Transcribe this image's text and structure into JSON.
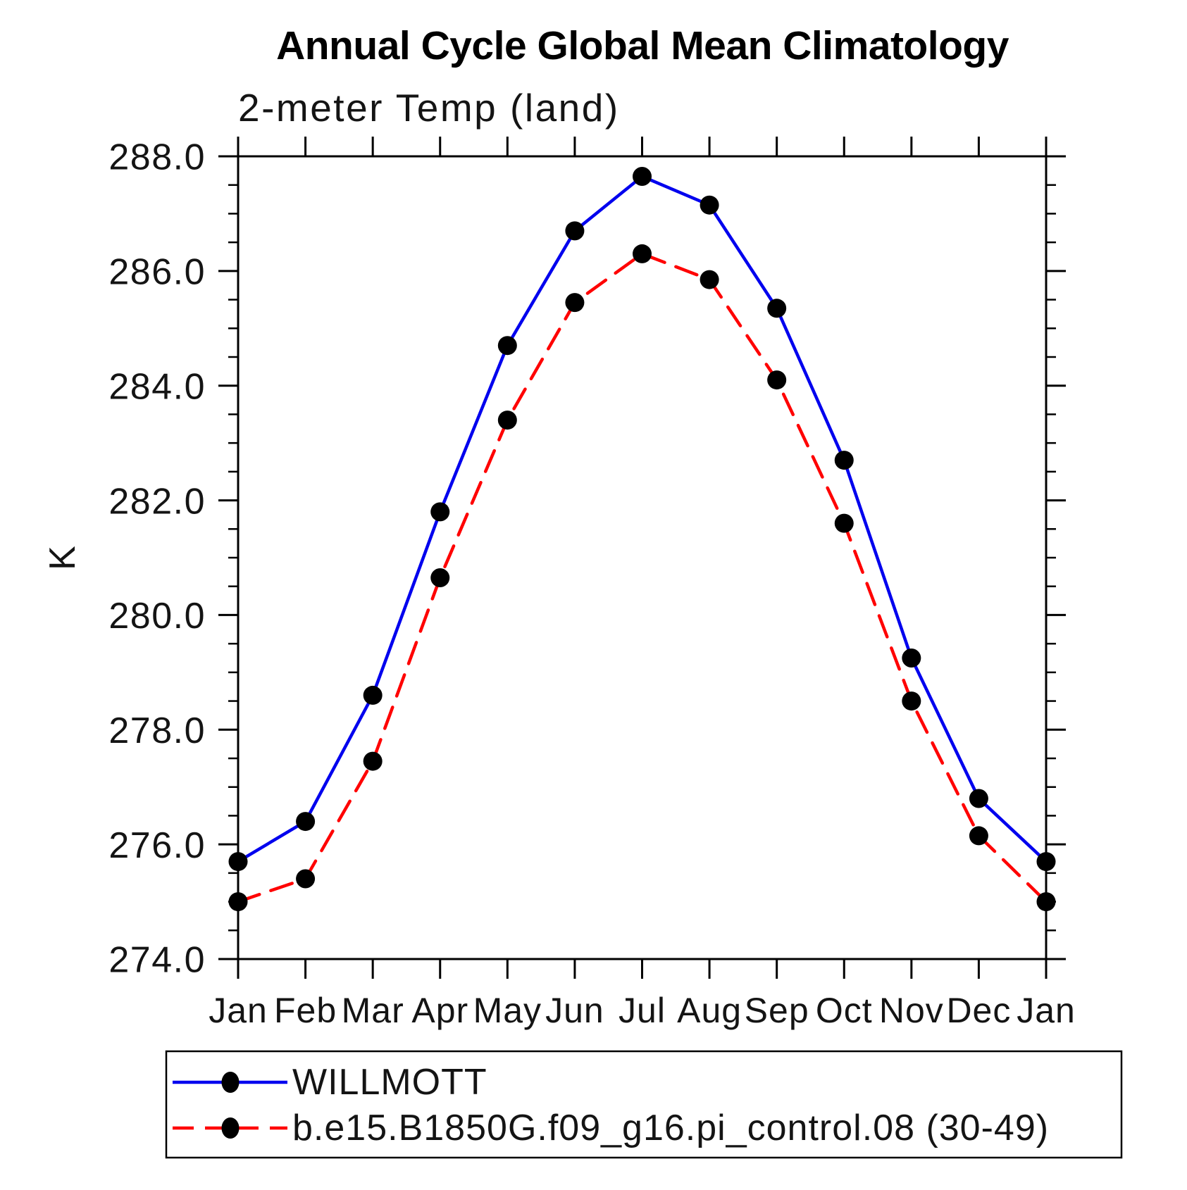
{
  "title": "Annual Cycle Global Mean Climatology",
  "subtitle": "2-meter Temp (land)",
  "y_axis_label": "K",
  "legend": {
    "position": "below",
    "entries": [
      {
        "label": "WILLMOTT",
        "color": "#0000ee",
        "line_style": "solid",
        "marker": "filled-circle",
        "marker_color": "#000000"
      },
      {
        "label": "b.e15.B1850G.f09_g16.pi_control.08 (30-49)",
        "color": "#ff0000",
        "line_style": "dashed",
        "marker": "filled-circle",
        "marker_color": "#000000"
      }
    ]
  },
  "chart_data": {
    "type": "line",
    "title": "Annual Cycle Global Mean Climatology",
    "subtitle": "2-meter Temp (land)",
    "xlabel": "",
    "ylabel": "K",
    "x": [
      "Jan",
      "Feb",
      "Mar",
      "Apr",
      "May",
      "Jun",
      "Jul",
      "Aug",
      "Sep",
      "Oct",
      "Nov",
      "Dec",
      "Jan"
    ],
    "ylim": [
      274.0,
      288.0
    ],
    "ytick_labels": [
      "288.0",
      "286.0",
      "284.0",
      "282.0",
      "280.0",
      "278.0",
      "276.0",
      "274.0"
    ],
    "ytick_interval": 2.0,
    "minor_ytick_interval": 0.5,
    "grid": "off",
    "legend_position": "below-left-box",
    "series": [
      {
        "name": "WILLMOTT",
        "color": "#0000ee",
        "line_style": "solid",
        "marker": "filled-circle",
        "marker_color": "#000000",
        "values": [
          275.7,
          276.4,
          278.6,
          281.8,
          284.7,
          286.7,
          287.65,
          287.15,
          285.35,
          282.7,
          279.25,
          276.8,
          275.7
        ]
      },
      {
        "name": "b.e15.B1850G.f09_g16.pi_control.08 (30-49)",
        "color": "#ff0000",
        "line_style": "dashed",
        "marker": "filled-circle",
        "marker_color": "#000000",
        "values": [
          275.0,
          275.4,
          277.45,
          280.65,
          283.4,
          285.45,
          286.3,
          285.85,
          284.1,
          281.6,
          278.5,
          276.15,
          275.0
        ]
      }
    ]
  }
}
